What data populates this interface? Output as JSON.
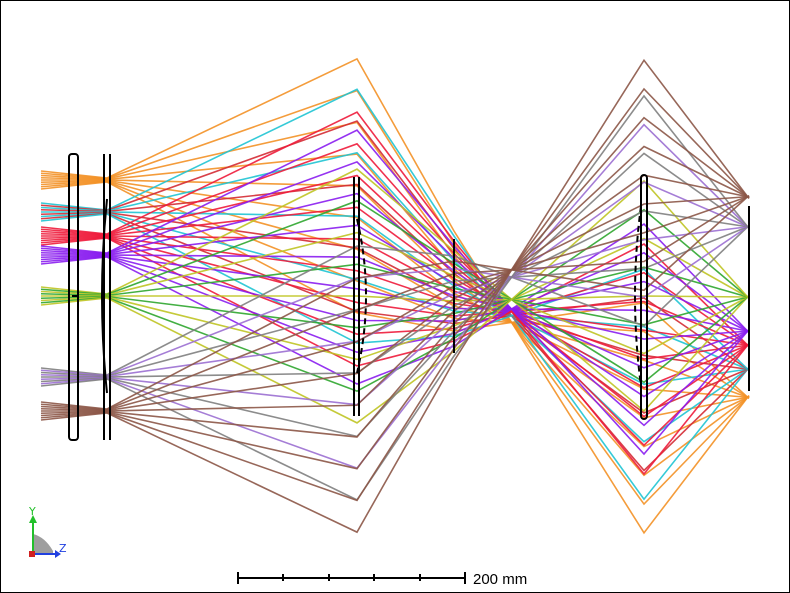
{
  "scale_bar": {
    "label": "200 mm"
  },
  "axes": {
    "y_label": "Y",
    "z_label": "Z",
    "y_color": "#22c02a",
    "z_color": "#2040e0",
    "origin_color": "#d02020"
  },
  "field_colors": [
    {
      "name": "orange",
      "hex": "#f39126"
    },
    {
      "name": "cyan",
      "hex": "#1fc4d3"
    },
    {
      "name": "red",
      "hex": "#ee1b3b"
    },
    {
      "name": "violet",
      "hex": "#8a1df0"
    },
    {
      "name": "olive",
      "hex": "#bfc424"
    },
    {
      "name": "gray",
      "hex": "#7f7f7f"
    },
    {
      "name": "brown",
      "hex": "#8c5747"
    }
  ],
  "image_colors": [
    {
      "name": "brown",
      "hex": "#8c5747"
    },
    {
      "name": "violet-light",
      "hex": "#9b6fd1"
    },
    {
      "name": "green",
      "hex": "#2fa62f"
    },
    {
      "name": "violet",
      "hex": "#8a1df0"
    },
    {
      "name": "red",
      "hex": "#ee1b3b"
    },
    {
      "name": "crimson",
      "hex": "#d42b34"
    },
    {
      "name": "orange",
      "hex": "#f39126"
    }
  ]
}
